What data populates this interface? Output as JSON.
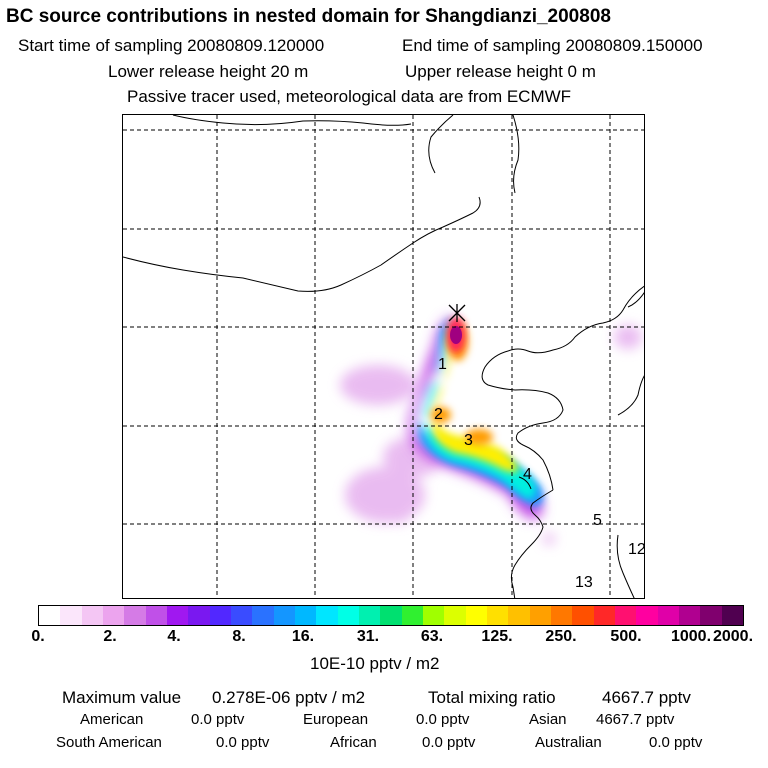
{
  "header": {
    "title": "BC  source contributions in nested domain for Shangdianzi_200808",
    "start_label": "Start time of sampling 20080809.120000",
    "end_label": "End time of sampling 20080809.150000",
    "lower_label": "Lower release height   20 m",
    "upper_label": "Upper release height    0 m",
    "tracer_label": "Passive tracer used, meteorological data are from ECMWF"
  },
  "map": {
    "trajectory_labels": [
      "1",
      "2",
      "3",
      "4",
      "5",
      "12",
      "13"
    ]
  },
  "colorbar": {
    "colors": [
      "#ffffff",
      "#fbe6fb",
      "#f4c6f4",
      "#eca4ee",
      "#d57be6",
      "#c050e8",
      "#a018f0",
      "#7a18f0",
      "#5228ff",
      "#3a4cff",
      "#2a72ff",
      "#1496ff",
      "#00b8ff",
      "#00e6ff",
      "#00ffe6",
      "#00f0b0",
      "#00e070",
      "#30f030",
      "#a0ff00",
      "#dcff00",
      "#ffff00",
      "#ffe000",
      "#ffc000",
      "#ffa000",
      "#ff7800",
      "#ff5000",
      "#ff2828",
      "#ff1070",
      "#ff00a0",
      "#e000a8",
      "#b00090",
      "#80006e",
      "#500050"
    ],
    "ticks": [
      "0.",
      "2.",
      "4.",
      "8.",
      "16.",
      "31.",
      "63.",
      "125.",
      "250.",
      "500.",
      "1000.",
      "2000."
    ],
    "units": "10E-10 pptv / m2"
  },
  "stats": {
    "max_label": "Maximum value",
    "max_value": "0.278E-06 pptv / m2",
    "total_label": "Total mixing ratio",
    "total_value": "4667.7 pptv",
    "regions": [
      {
        "name": "American",
        "value": "0.0 pptv"
      },
      {
        "name": "European",
        "value": "0.0 pptv"
      },
      {
        "name": "Asian",
        "value": "4667.7 pptv"
      },
      {
        "name": "South American",
        "value": "0.0 pptv"
      },
      {
        "name": "African",
        "value": "0.0 pptv"
      },
      {
        "name": "Australian",
        "value": "0.0 pptv"
      }
    ]
  }
}
